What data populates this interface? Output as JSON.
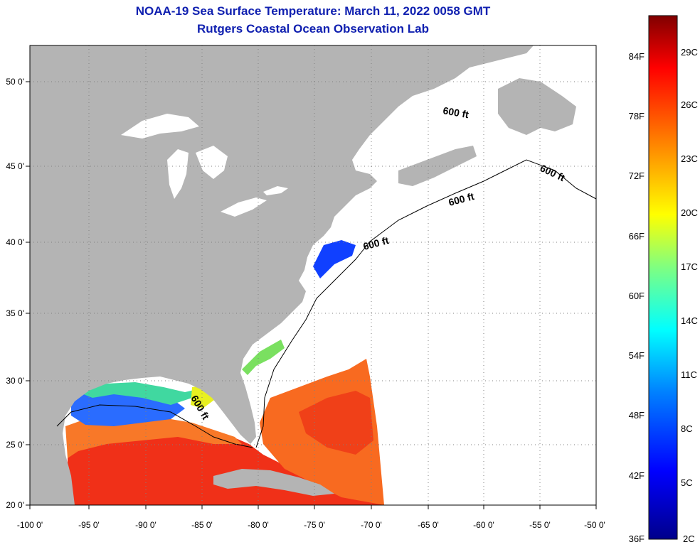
{
  "title": "NOAA-19 Sea Surface Temperature:  March 11, 2022 0058 GMT",
  "subtitle": "Rutgers Coastal Ocean Observation Lab",
  "lat_labels": [
    "50 0'",
    "45 0'",
    "40 0'",
    "35 0'",
    "30 0'",
    "25 0'",
    "20 0'"
  ],
  "lon_labels": [
    "-100 0'",
    "-95 0'",
    "-90 0'",
    "-85 0'",
    "-80 0'",
    "-75 0'",
    "-70 0'",
    "-65 0'",
    "-60 0'",
    "-55 0'",
    "-50 0'"
  ],
  "isobath_labels": [
    "600 ft",
    "600 ft",
    "600 ft",
    "600 ft",
    "600 ft"
  ],
  "colorbar": {
    "f_labels": [
      "84F",
      "78F",
      "72F",
      "66F",
      "60F",
      "54F",
      "48F",
      "42F",
      "36F"
    ],
    "c_labels": [
      "29C",
      "26C",
      "23C",
      "20C",
      "17C",
      "14C",
      "11C",
      "8C",
      "5C",
      "2C"
    ],
    "colors_bottom_to_top": [
      "#00008b",
      "#0000ff",
      "#0080ff",
      "#00ffff",
      "#80ff80",
      "#ffff00",
      "#ff8000",
      "#ff0000",
      "#800000"
    ]
  },
  "colors": {
    "land": "#b4b4b4",
    "title": "#1020b0",
    "no_data": "#ffffff"
  }
}
